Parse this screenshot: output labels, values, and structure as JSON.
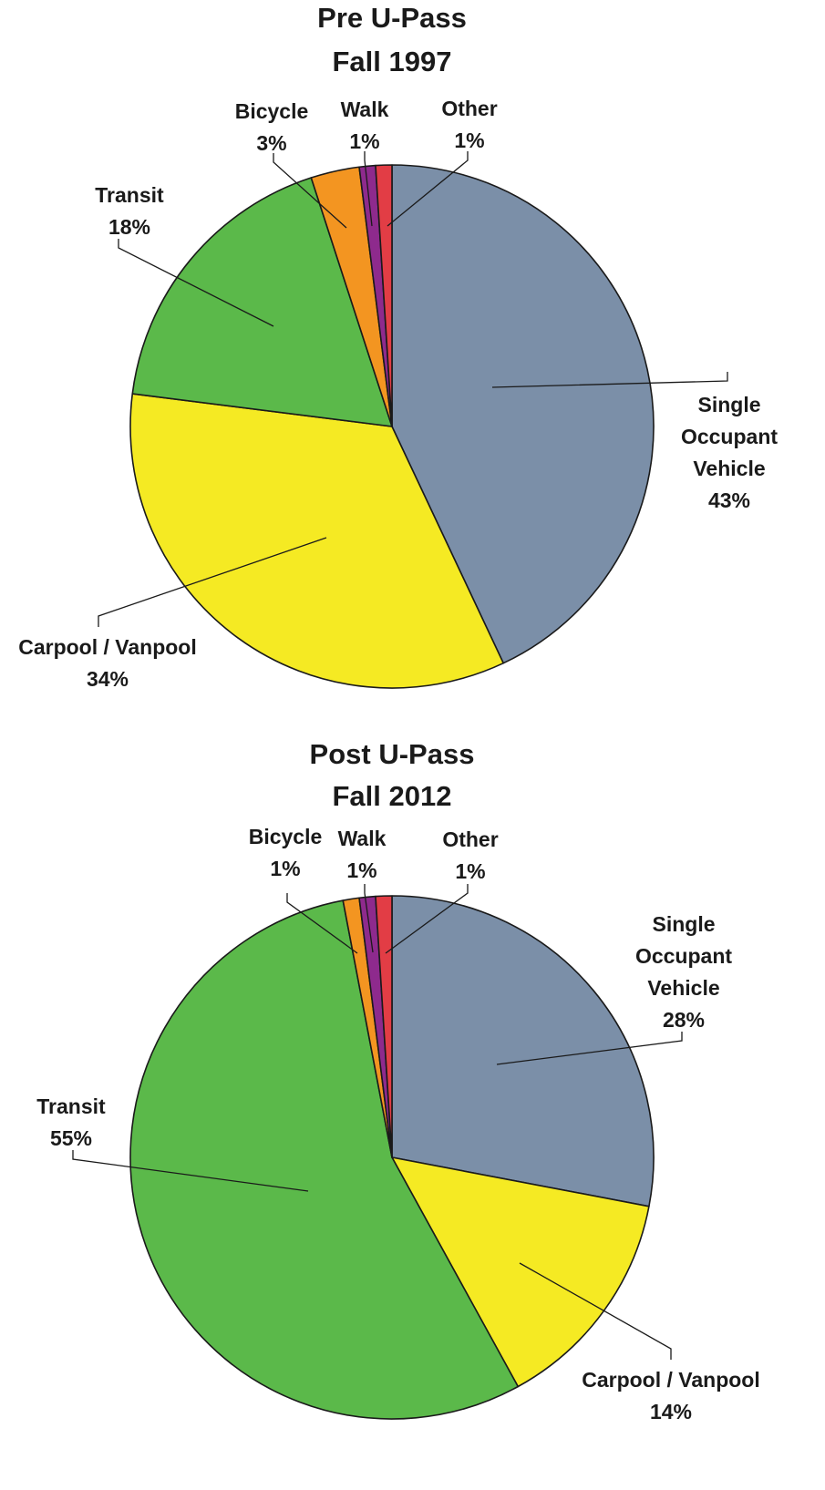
{
  "chart_data": [
    {
      "type": "pie",
      "title": "Pre U-Pass",
      "subtitle": "Fall 1997",
      "slices": [
        {
          "key": "sov",
          "name": "Single Occupant Vehicle",
          "lines": [
            "Single",
            "Occupant",
            "Vehicle"
          ],
          "value": 43,
          "pct": "43%",
          "color": "#7b8fa8"
        },
        {
          "key": "carpool",
          "name": "Carpool / Vanpool",
          "lines": [
            "Carpool / Vanpool"
          ],
          "value": 34,
          "pct": "34%",
          "color": "#f5ea23"
        },
        {
          "key": "transit",
          "name": "Transit",
          "lines": [
            "Transit"
          ],
          "value": 18,
          "pct": "18%",
          "color": "#5bb94a"
        },
        {
          "key": "bicycle",
          "name": "Bicycle",
          "lines": [
            "Bicycle"
          ],
          "value": 3,
          "pct": "3%",
          "color": "#f39521"
        },
        {
          "key": "walk",
          "name": "Walk",
          "lines": [
            "Walk"
          ],
          "value": 1,
          "pct": "1%",
          "color": "#8e2a8d"
        },
        {
          "key": "other",
          "name": "Other",
          "lines": [
            "Other"
          ],
          "value": 1,
          "pct": "1%",
          "color": "#e23d45"
        }
      ]
    },
    {
      "type": "pie",
      "title": "Post U-Pass",
      "subtitle": "Fall 2012",
      "slices": [
        {
          "key": "sov",
          "name": "Single Occupant Vehicle",
          "lines": [
            "Single",
            "Occupant",
            "Vehicle"
          ],
          "value": 28,
          "pct": "28%",
          "color": "#7b8fa8"
        },
        {
          "key": "carpool",
          "name": "Carpool / Vanpool",
          "lines": [
            "Carpool / Vanpool"
          ],
          "value": 14,
          "pct": "14%",
          "color": "#f5ea23"
        },
        {
          "key": "transit",
          "name": "Transit",
          "lines": [
            "Transit"
          ],
          "value": 55,
          "pct": "55%",
          "color": "#5bb94a"
        },
        {
          "key": "bicycle",
          "name": "Bicycle",
          "lines": [
            "Bicycle"
          ],
          "value": 1,
          "pct": "1%",
          "color": "#f39521"
        },
        {
          "key": "walk",
          "name": "Walk",
          "lines": [
            "Walk"
          ],
          "value": 1,
          "pct": "1%",
          "color": "#8e2a8d"
        },
        {
          "key": "other",
          "name": "Other",
          "lines": [
            "Other"
          ],
          "value": 1,
          "pct": "1%",
          "color": "#e23d45"
        }
      ]
    }
  ]
}
